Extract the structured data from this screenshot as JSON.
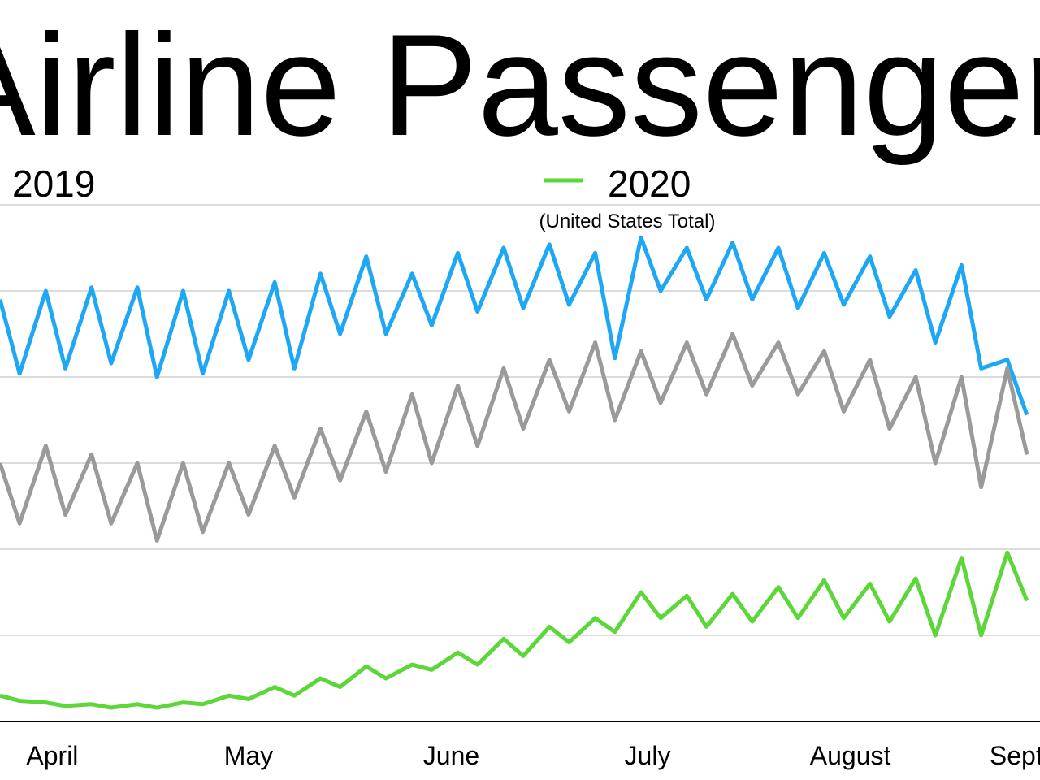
{
  "chart_data": {
    "type": "line",
    "title": "Airline Passengers",
    "subtitle": "(United States Total)",
    "x": [
      83,
      86,
      90,
      93,
      97,
      100,
      104,
      107,
      111,
      114,
      118,
      121,
      125,
      128,
      132,
      135,
      139,
      142,
      146,
      149,
      153,
      156,
      160,
      163,
      167,
      170,
      174,
      177,
      181,
      184,
      188,
      191,
      195,
      198,
      202,
      205,
      209,
      212,
      216,
      219,
      223,
      226,
      230,
      233,
      237,
      240
    ],
    "xlim": [
      83,
      241
    ],
    "xticks": [
      {
        "value": 91,
        "label": "April"
      },
      {
        "value": 121,
        "label": "May"
      },
      {
        "value": 152,
        "label": "June"
      },
      {
        "value": 182,
        "label": "July"
      },
      {
        "value": 213,
        "label": "August"
      },
      {
        "value": 244,
        "label": "September"
      }
    ],
    "ylim": [
      0,
      3
    ],
    "yticks": [
      0,
      0.5,
      1,
      1.5,
      2,
      2.5,
      3
    ],
    "grid": true,
    "series": [
      {
        "name": "2019",
        "color": "#1ea7f5",
        "values": [
          2.45,
          2.02,
          2.5,
          2.05,
          2.52,
          2.08,
          2.52,
          2.0,
          2.5,
          2.02,
          2.5,
          2.1,
          2.55,
          2.05,
          2.6,
          2.25,
          2.7,
          2.25,
          2.6,
          2.3,
          2.72,
          2.38,
          2.75,
          2.4,
          2.77,
          2.42,
          2.72,
          2.11,
          2.81,
          2.5,
          2.75,
          2.45,
          2.78,
          2.45,
          2.75,
          2.4,
          2.72,
          2.42,
          2.7,
          2.35,
          2.62,
          2.2,
          2.65,
          2.05,
          2.1,
          1.78
        ]
      },
      {
        "color": "#9a9a9a",
        "values": [
          1.5,
          1.15,
          1.6,
          1.2,
          1.55,
          1.15,
          1.5,
          1.05,
          1.5,
          1.1,
          1.5,
          1.2,
          1.6,
          1.3,
          1.7,
          1.4,
          1.8,
          1.45,
          1.9,
          1.5,
          1.95,
          1.6,
          2.05,
          1.7,
          2.1,
          1.8,
          2.2,
          1.75,
          2.15,
          1.85,
          2.2,
          1.9,
          2.25,
          1.95,
          2.2,
          1.9,
          2.15,
          1.8,
          2.1,
          1.7,
          2.0,
          1.5,
          2.0,
          1.36,
          2.05,
          1.55
        ]
      },
      {
        "name": "2020",
        "color": "#5dd63a",
        "values": [
          0.15,
          0.12,
          0.11,
          0.09,
          0.1,
          0.08,
          0.1,
          0.08,
          0.11,
          0.1,
          0.15,
          0.13,
          0.2,
          0.15,
          0.25,
          0.2,
          0.32,
          0.25,
          0.33,
          0.3,
          0.4,
          0.33,
          0.48,
          0.38,
          0.55,
          0.46,
          0.6,
          0.52,
          0.75,
          0.6,
          0.73,
          0.55,
          0.74,
          0.58,
          0.78,
          0.6,
          0.82,
          0.6,
          0.8,
          0.58,
          0.83,
          0.5,
          0.95,
          0.5,
          0.98,
          0.7
        ]
      }
    ]
  }
}
